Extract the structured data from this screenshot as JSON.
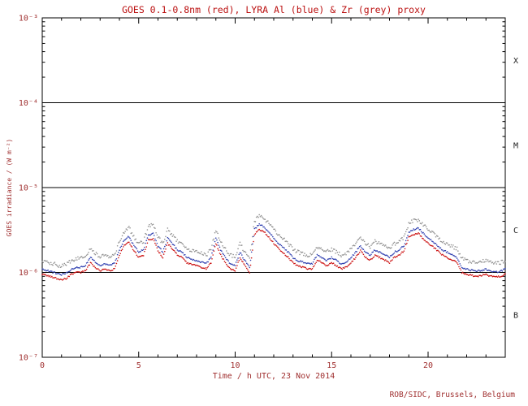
{
  "footer": "ROB/SIDC, Brussels, Belgium",
  "colors": {
    "title_text": "#bb1111",
    "axis_text": "#a03030",
    "class_label_text": "#222222",
    "goes_red": "#cc1111",
    "lyra_al_blue": "#3040b0",
    "lyra_zr_grey": "#909090",
    "frame": "#000000"
  },
  "chart_data": {
    "type": "scatter",
    "title": "GOES 0.1-0.8nm (red), LYRA Al (blue) & Zr (grey) proxy",
    "xlabel": "Time / h UTC, 23 Nov 2014",
    "ylabel": "GOES irradiance / (W m⁻²)",
    "x_range": [
      0,
      24
    ],
    "x_major_ticks": [
      0,
      5,
      10,
      15,
      20
    ],
    "x_minor_step": 1,
    "y_scale": "log",
    "y_range_exp": [
      -7,
      -3
    ],
    "y_tick_exps": [
      -7,
      -6,
      -5,
      -4,
      -3
    ],
    "y_tick_labels": [
      "10⁻⁷",
      "10⁻⁶",
      "10⁻⁵",
      "10⁻⁴",
      "10⁻³"
    ],
    "hlines_exp": [
      -6,
      -5,
      -4
    ],
    "class_bands": [
      {
        "label": "X",
        "between_exp": [
          -4,
          -3
        ]
      },
      {
        "label": "M",
        "between_exp": [
          -5,
          -4
        ]
      },
      {
        "label": "C",
        "between_exp": [
          -6,
          -5
        ]
      },
      {
        "label": "B",
        "between_exp": [
          -7,
          -6
        ]
      }
    ],
    "legend": [
      {
        "name": "GOES 0.1-0.8nm",
        "color": "red"
      },
      {
        "name": "LYRA Al proxy",
        "color": "blue"
      },
      {
        "name": "LYRA Zr proxy",
        "color": "grey"
      }
    ],
    "grid": false,
    "unit_scale": 1e-06,
    "x_step_h": 0.25,
    "series": [
      {
        "name": "GOES 0.1-0.8nm",
        "color_hex": "#cc1111",
        "jitter_log": 0.018,
        "values_e6": [
          0.95,
          0.92,
          0.88,
          0.85,
          0.82,
          0.85,
          0.95,
          1.0,
          1.0,
          1.05,
          1.3,
          1.15,
          1.05,
          1.1,
          1.05,
          1.1,
          1.6,
          2.1,
          2.3,
          1.8,
          1.5,
          1.6,
          2.4,
          2.5,
          1.8,
          1.5,
          2.2,
          1.9,
          1.6,
          1.5,
          1.3,
          1.25,
          1.2,
          1.15,
          1.1,
          1.3,
          2.2,
          1.6,
          1.3,
          1.1,
          1.05,
          1.5,
          1.2,
          1.0,
          2.8,
          3.2,
          3.0,
          2.6,
          2.2,
          1.9,
          1.7,
          1.5,
          1.3,
          1.2,
          1.15,
          1.1,
          1.1,
          1.4,
          1.3,
          1.2,
          1.3,
          1.2,
          1.1,
          1.15,
          1.3,
          1.5,
          1.8,
          1.5,
          1.4,
          1.6,
          1.5,
          1.4,
          1.3,
          1.5,
          1.6,
          1.8,
          2.6,
          2.8,
          2.9,
          2.5,
          2.2,
          2.0,
          1.8,
          1.6,
          1.5,
          1.4,
          1.3,
          1.0,
          0.95,
          0.92,
          0.9,
          0.92,
          0.95,
          0.9,
          0.88,
          0.9,
          0.95
        ]
      },
      {
        "name": "LYRA Al proxy",
        "color_hex": "#3040b0",
        "jitter_log": 0.02,
        "values_e6": [
          1.09,
          1.06,
          1.01,
          0.98,
          0.94,
          0.98,
          1.09,
          1.15,
          1.15,
          1.21,
          1.5,
          1.32,
          1.21,
          1.27,
          1.21,
          1.27,
          1.84,
          2.42,
          2.65,
          2.07,
          1.73,
          1.84,
          2.76,
          2.88,
          2.07,
          1.73,
          2.53,
          2.19,
          1.84,
          1.73,
          1.5,
          1.44,
          1.38,
          1.32,
          1.27,
          1.5,
          2.53,
          1.84,
          1.5,
          1.27,
          1.21,
          1.73,
          1.38,
          1.15,
          3.22,
          3.68,
          3.45,
          2.99,
          2.53,
          2.19,
          1.96,
          1.73,
          1.5,
          1.38,
          1.32,
          1.27,
          1.27,
          1.61,
          1.5,
          1.38,
          1.5,
          1.38,
          1.27,
          1.32,
          1.5,
          1.73,
          2.07,
          1.73,
          1.61,
          1.84,
          1.73,
          1.61,
          1.5,
          1.73,
          1.84,
          2.07,
          2.99,
          3.22,
          3.34,
          2.88,
          2.53,
          2.3,
          2.07,
          1.84,
          1.73,
          1.61,
          1.5,
          1.15,
          1.09,
          1.06,
          1.04,
          1.06,
          1.09,
          1.04,
          1.01,
          1.04,
          1.09
        ]
      },
      {
        "name": "LYRA Zr proxy",
        "color_hex": "#909090",
        "jitter_log": 0.045,
        "values_e6": [
          1.38,
          1.33,
          1.28,
          1.23,
          1.19,
          1.23,
          1.38,
          1.45,
          1.45,
          1.52,
          1.89,
          1.67,
          1.52,
          1.6,
          1.52,
          1.6,
          2.32,
          3.05,
          3.34,
          2.61,
          2.18,
          2.32,
          3.48,
          3.63,
          2.61,
          2.18,
          3.19,
          2.76,
          2.32,
          2.18,
          1.89,
          1.81,
          1.74,
          1.67,
          1.6,
          1.89,
          3.19,
          2.32,
          1.89,
          1.6,
          1.52,
          2.18,
          1.74,
          1.45,
          4.06,
          4.64,
          4.35,
          3.77,
          3.19,
          2.76,
          2.47,
          2.18,
          1.89,
          1.74,
          1.67,
          1.6,
          1.6,
          2.03,
          1.89,
          1.74,
          1.89,
          1.74,
          1.6,
          1.67,
          1.89,
          2.18,
          2.61,
          2.18,
          2.03,
          2.32,
          2.18,
          2.03,
          1.89,
          2.18,
          2.32,
          2.61,
          3.77,
          4.06,
          4.21,
          3.63,
          3.19,
          2.9,
          2.61,
          2.32,
          2.18,
          2.03,
          1.89,
          1.45,
          1.38,
          1.33,
          1.31,
          1.33,
          1.38,
          1.31,
          1.28,
          1.31,
          1.38
        ]
      }
    ]
  }
}
